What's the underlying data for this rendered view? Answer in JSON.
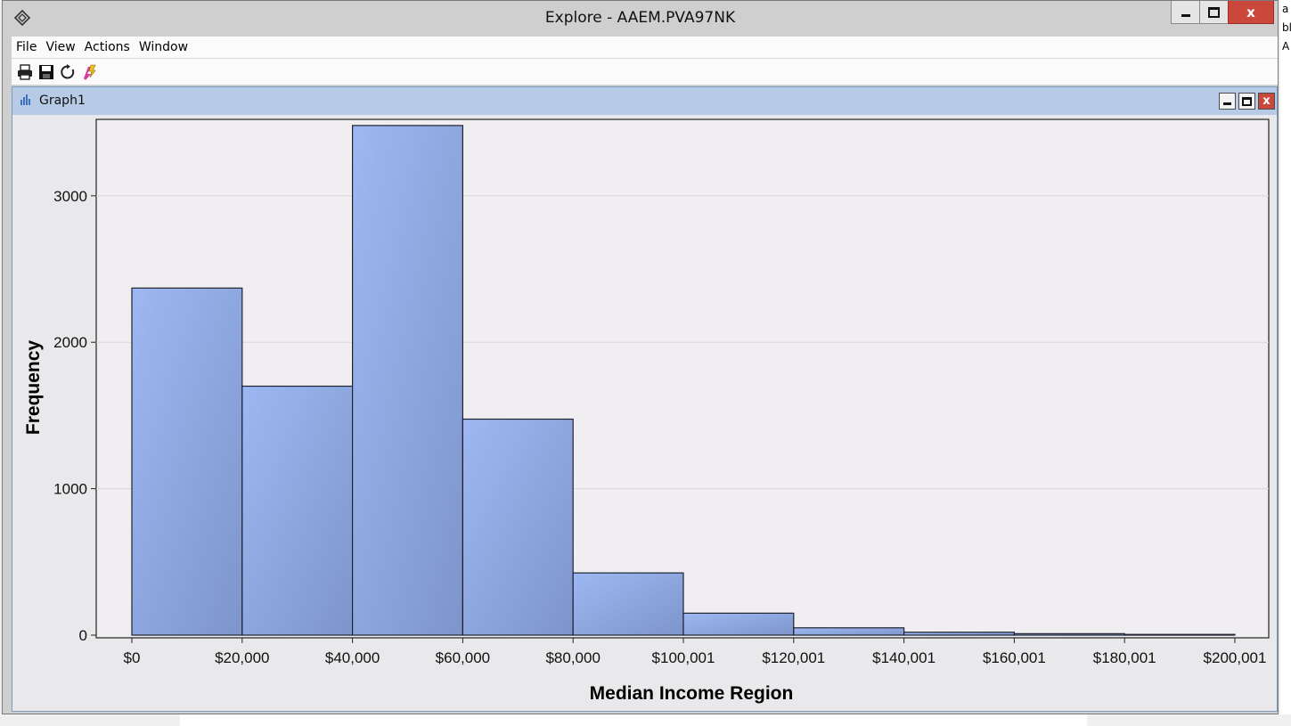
{
  "window": {
    "title": "Explore - AAEM.PVA97NK",
    "app_icon": "sas-app-icon",
    "buttons": {
      "minimize": "minimize-icon",
      "maximize": "maximize-icon",
      "close": "x"
    }
  },
  "menu": {
    "items": [
      "File",
      "View",
      "Actions",
      "Window"
    ]
  },
  "toolbar": {
    "icons": [
      "print-icon",
      "save-icon",
      "refresh-icon",
      "run-icon"
    ]
  },
  "graph_window": {
    "title": "Graph1",
    "icon": "bar-chart-icon",
    "buttons": {
      "minimize": "minimize-icon",
      "maximize": "maximize-icon",
      "close": "x"
    }
  },
  "edge_text": [
    "a",
    "bl",
    "A"
  ],
  "colors": {
    "bar_fill_light": "#9db8f2",
    "bar_fill_dark": "#7d95cb",
    "plot_bg": "#f0eef1",
    "title_bar_accent": "#c9483b",
    "graph_titlebar": "#b8cbe6"
  },
  "chart_data": {
    "type": "bar",
    "title": "",
    "xlabel": "Median Income Region",
    "ylabel": "Frequency",
    "x_tick_labels": [
      "$0",
      "$20,000",
      "$40,000",
      "$60,000",
      "$80,000",
      "$100,001",
      "$120,001",
      "$140,001",
      "$160,001",
      "$180,001",
      "$200,001"
    ],
    "y_tick_labels": [
      "0",
      "1000",
      "2000",
      "3000"
    ],
    "y_ticks": [
      0,
      1000,
      2000,
      3000
    ],
    "ylim": [
      0,
      3500
    ],
    "grid": "horizontal",
    "categories": [
      "$0–$20,000",
      "$20,000–$40,000",
      "$40,000–$60,000",
      "$60,000–$80,000",
      "$80,000–$100,001",
      "$100,001–$120,001",
      "$120,001–$140,001",
      "$140,001–$160,001",
      "$160,001–$180,001",
      "$180,001–$200,001"
    ],
    "values": [
      2370,
      1700,
      3480,
      1475,
      425,
      150,
      50,
      20,
      10,
      5
    ]
  }
}
